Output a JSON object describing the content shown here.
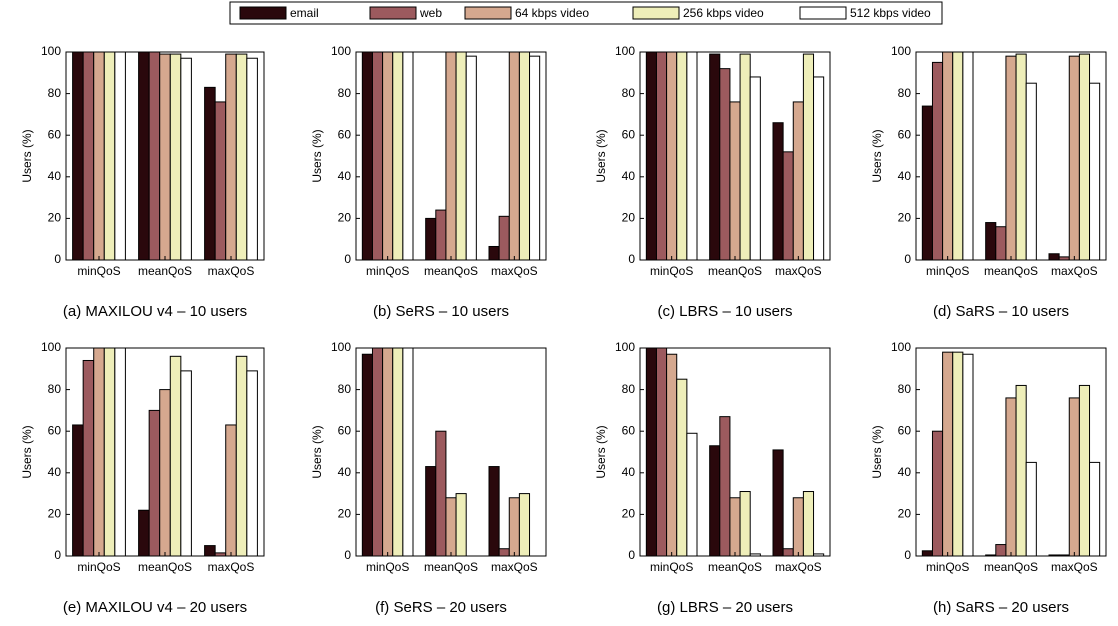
{
  "chart_data": [
    {
      "type": "bar",
      "caption": "(a) MAXILOU v4 – 10 users",
      "ylabel": "Users (%)",
      "categories": [
        "minQoS",
        "meanQoS",
        "maxQoS"
      ],
      "ylim": [
        0,
        100
      ],
      "yticks": [
        0,
        20,
        40,
        60,
        80,
        100
      ],
      "series": [
        {
          "name": "email",
          "color": "#2a080c",
          "values": [
            100,
            100,
            83
          ]
        },
        {
          "name": "web",
          "color": "#9c5a5e",
          "values": [
            100,
            100,
            76
          ]
        },
        {
          "name": "64 kbps video",
          "color": "#d5a88f",
          "values": [
            100,
            99,
            99
          ]
        },
        {
          "name": "256 kbps video",
          "color": "#eeeeb9",
          "values": [
            100,
            99,
            99
          ]
        },
        {
          "name": "512 kbps video",
          "color": "#ffffff",
          "values": [
            100,
            97,
            97
          ]
        }
      ]
    },
    {
      "type": "bar",
      "caption": "(b) SeRS – 10 users",
      "ylabel": "Users (%)",
      "categories": [
        "minQoS",
        "meanQoS",
        "maxQoS"
      ],
      "ylim": [
        0,
        100
      ],
      "yticks": [
        0,
        20,
        40,
        60,
        80,
        100
      ],
      "series": [
        {
          "values": [
            100,
            20,
            6.5
          ]
        },
        {
          "values": [
            100,
            24,
            21
          ]
        },
        {
          "values": [
            100,
            100,
            100
          ]
        },
        {
          "values": [
            100,
            100,
            100
          ]
        },
        {
          "values": [
            100,
            98,
            98
          ]
        }
      ]
    },
    {
      "type": "bar",
      "caption": "(c) LBRS – 10 users",
      "ylabel": "Users (%)",
      "categories": [
        "minQoS",
        "meanQoS",
        "maxQoS"
      ],
      "ylim": [
        0,
        100
      ],
      "yticks": [
        0,
        20,
        40,
        60,
        80,
        100
      ],
      "series": [
        {
          "values": [
            100,
            99,
            66
          ]
        },
        {
          "values": [
            100,
            92,
            52
          ]
        },
        {
          "values": [
            100,
            76,
            76
          ]
        },
        {
          "values": [
            100,
            99,
            99
          ]
        },
        {
          "values": [
            100,
            88,
            88
          ]
        }
      ]
    },
    {
      "type": "bar",
      "caption": "(d) SaRS – 10 users",
      "ylabel": "Users (%)",
      "categories": [
        "minQoS",
        "meanQoS",
        "maxQoS"
      ],
      "ylim": [
        0,
        100
      ],
      "yticks": [
        0,
        20,
        40,
        60,
        80,
        100
      ],
      "series": [
        {
          "values": [
            74,
            18,
            3
          ]
        },
        {
          "values": [
            95,
            16,
            1.5
          ]
        },
        {
          "values": [
            100,
            98,
            98
          ]
        },
        {
          "values": [
            100,
            99,
            99
          ]
        },
        {
          "values": [
            100,
            85,
            85
          ]
        }
      ]
    },
    {
      "type": "bar",
      "caption": "(e) MAXILOU v4 – 20 users",
      "ylabel": "Users (%)",
      "categories": [
        "minQoS",
        "meanQoS",
        "maxQoS"
      ],
      "ylim": [
        0,
        100
      ],
      "yticks": [
        0,
        20,
        40,
        60,
        80,
        100
      ],
      "series": [
        {
          "values": [
            63,
            22,
            5
          ]
        },
        {
          "values": [
            94,
            70,
            1.5
          ]
        },
        {
          "values": [
            100,
            80,
            63
          ]
        },
        {
          "values": [
            100,
            96,
            96
          ]
        },
        {
          "values": [
            100,
            89,
            89
          ]
        }
      ]
    },
    {
      "type": "bar",
      "caption": "(f) SeRS – 20 users",
      "ylabel": "Users (%)",
      "categories": [
        "minQoS",
        "meanQoS",
        "maxQoS"
      ],
      "ylim": [
        0,
        100
      ],
      "yticks": [
        0,
        20,
        40,
        60,
        80,
        100
      ],
      "series": [
        {
          "values": [
            97,
            43,
            43
          ]
        },
        {
          "values": [
            100,
            60,
            3.5
          ]
        },
        {
          "values": [
            100,
            28,
            28
          ]
        },
        {
          "values": [
            100,
            30,
            30
          ]
        },
        {
          "values": [
            100,
            0,
            0
          ]
        }
      ]
    },
    {
      "type": "bar",
      "caption": "(g) LBRS – 20 users",
      "ylabel": "Users (%)",
      "categories": [
        "minQoS",
        "meanQoS",
        "maxQoS"
      ],
      "ylim": [
        0,
        100
      ],
      "yticks": [
        0,
        20,
        40,
        60,
        80,
        100
      ],
      "series": [
        {
          "values": [
            100,
            53,
            51
          ]
        },
        {
          "values": [
            100,
            67,
            3.5
          ]
        },
        {
          "values": [
            97,
            28,
            28
          ]
        },
        {
          "values": [
            85,
            31,
            31
          ]
        },
        {
          "values": [
            59,
            1,
            1
          ]
        }
      ]
    },
    {
      "type": "bar",
      "caption": "(h) SaRS – 20 users",
      "ylabel": "Users (%)",
      "categories": [
        "minQoS",
        "meanQoS",
        "maxQoS"
      ],
      "ylim": [
        0,
        100
      ],
      "yticks": [
        0,
        20,
        40,
        60,
        80,
        100
      ],
      "series": [
        {
          "values": [
            2.5,
            0.5,
            0.5
          ]
        },
        {
          "values": [
            60,
            5.5,
            0.5
          ]
        },
        {
          "values": [
            98,
            76,
            76
          ]
        },
        {
          "values": [
            98,
            82,
            82
          ]
        },
        {
          "values": [
            97,
            45,
            45
          ]
        }
      ]
    }
  ]
}
